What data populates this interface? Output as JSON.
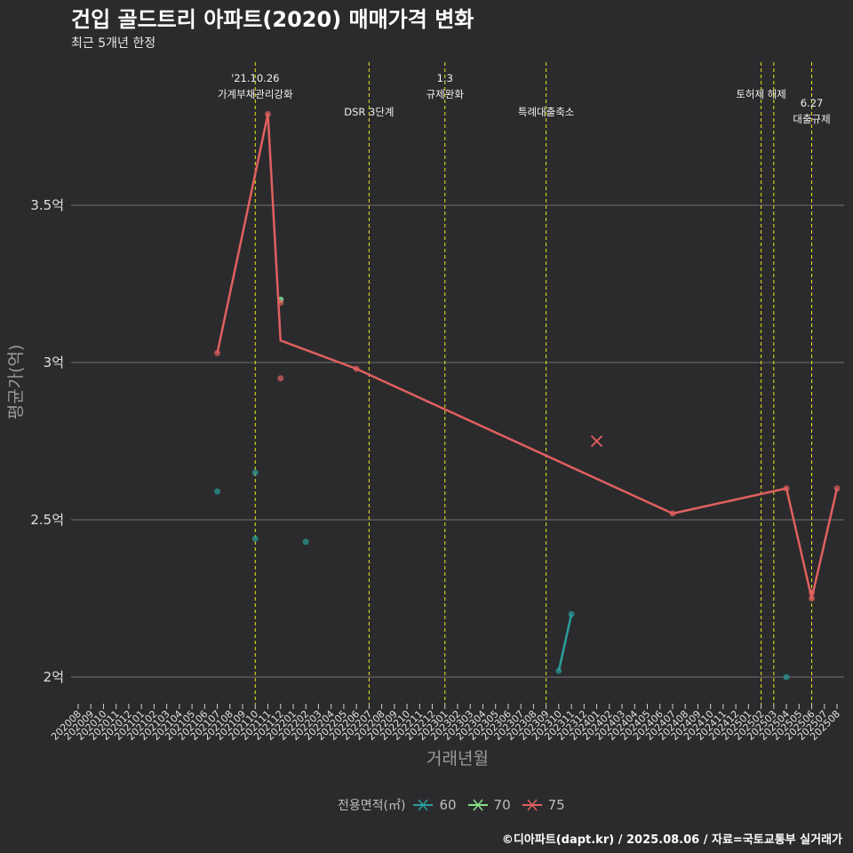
{
  "title": "건입 골드트리 아파트(2020) 매매가격 변화",
  "subtitle": "최근 5개년 한정",
  "caption": "©디아파트(dapt.kr) / 2025.08.06 / 자료=국토교통부 실거래가",
  "legend": {
    "title": "전용면적(㎡)",
    "items": [
      {
        "label": "60",
        "color": "#2a9d9a"
      },
      {
        "label": "70",
        "color": "#8be08b"
      },
      {
        "label": "75",
        "color": "#e0605f"
      }
    ]
  },
  "chart_data": {
    "type": "line",
    "xlabel": "거래년월",
    "ylabel": "평균가(억)",
    "ylim": [
      1.9,
      3.92
    ],
    "yticks": [
      {
        "v": 2.0,
        "label": "2억"
      },
      {
        "v": 2.5,
        "label": "2.5억"
      },
      {
        "v": 3.0,
        "label": "3억"
      },
      {
        "v": 3.5,
        "label": "3.5억"
      }
    ],
    "categories": [
      "202008",
      "202009",
      "202010",
      "202011",
      "202012",
      "202101",
      "202102",
      "202103",
      "202104",
      "202105",
      "202106",
      "202107",
      "202108",
      "202109",
      "202110",
      "202111",
      "202112",
      "202201",
      "202202",
      "202203",
      "202204",
      "202205",
      "202206",
      "202207",
      "202208",
      "202209",
      "202210",
      "202211",
      "202212",
      "202301",
      "202302",
      "202303",
      "202304",
      "202305",
      "202306",
      "202307",
      "202308",
      "202309",
      "202310",
      "202311",
      "202312",
      "202401",
      "202402",
      "202403",
      "202404",
      "202405",
      "202406",
      "202407",
      "202408",
      "202409",
      "202410",
      "202411",
      "202412",
      "202501",
      "202502",
      "202503",
      "202504",
      "202505",
      "202506",
      "202507",
      "202508"
    ],
    "events": [
      {
        "x": "202110",
        "line1": "'21.10.26",
        "line2": "가계부채관리강화",
        "level": 0
      },
      {
        "x": "202207",
        "line1": "DSR 3단계",
        "line2": "",
        "level": 1
      },
      {
        "x": "202301",
        "line1": "1.3",
        "line2": "규제완화",
        "level": 0
      },
      {
        "x": "202309",
        "line1": "특례대출축소",
        "line2": "",
        "level": 1
      },
      {
        "x": "202502",
        "line1": "토허제 해제",
        "line2": "",
        "level": 0
      },
      {
        "x": "202503",
        "line1": "",
        "line2": "",
        "level": 0
      },
      {
        "x": "202506",
        "line1": "6.27",
        "line2": "대출규제",
        "level": 2
      }
    ],
    "series": [
      {
        "name": "60",
        "color": "#2a9d9a",
        "line": [
          [
            "202310",
            2.02
          ],
          [
            "202311",
            2.2
          ]
        ],
        "points": [
          [
            "202107",
            2.59
          ],
          [
            "202110",
            2.65
          ],
          [
            "202110",
            2.44
          ],
          [
            "202112",
            3.2
          ],
          [
            "202202",
            2.43
          ],
          [
            "202310",
            2.02
          ],
          [
            "202311",
            2.2
          ],
          [
            "202504",
            2.0
          ]
        ]
      },
      {
        "name": "70",
        "color": "#8be08b",
        "line": [],
        "points": [
          [
            "202112",
            3.2
          ]
        ]
      },
      {
        "name": "75",
        "color": "#e0605f",
        "line": [
          [
            "202107",
            3.03
          ],
          [
            "202111",
            3.79
          ],
          [
            "202112",
            3.07
          ],
          [
            "202206",
            2.98
          ],
          [
            "202407",
            2.52
          ],
          [
            "202504",
            2.6
          ],
          [
            "202506",
            2.25
          ],
          [
            "202508",
            2.6
          ]
        ],
        "points": [
          [
            "202107",
            3.03
          ],
          [
            "202111",
            3.79
          ],
          [
            "202112",
            3.19
          ],
          [
            "202112",
            2.95
          ],
          [
            "202206",
            2.98
          ],
          [
            "202407",
            2.52
          ],
          [
            "202504",
            2.6
          ],
          [
            "202506",
            2.27
          ],
          [
            "202506",
            2.25
          ],
          [
            "202508",
            2.6
          ]
        ],
        "crosses": [
          [
            "202401",
            2.75
          ]
        ]
      }
    ]
  }
}
